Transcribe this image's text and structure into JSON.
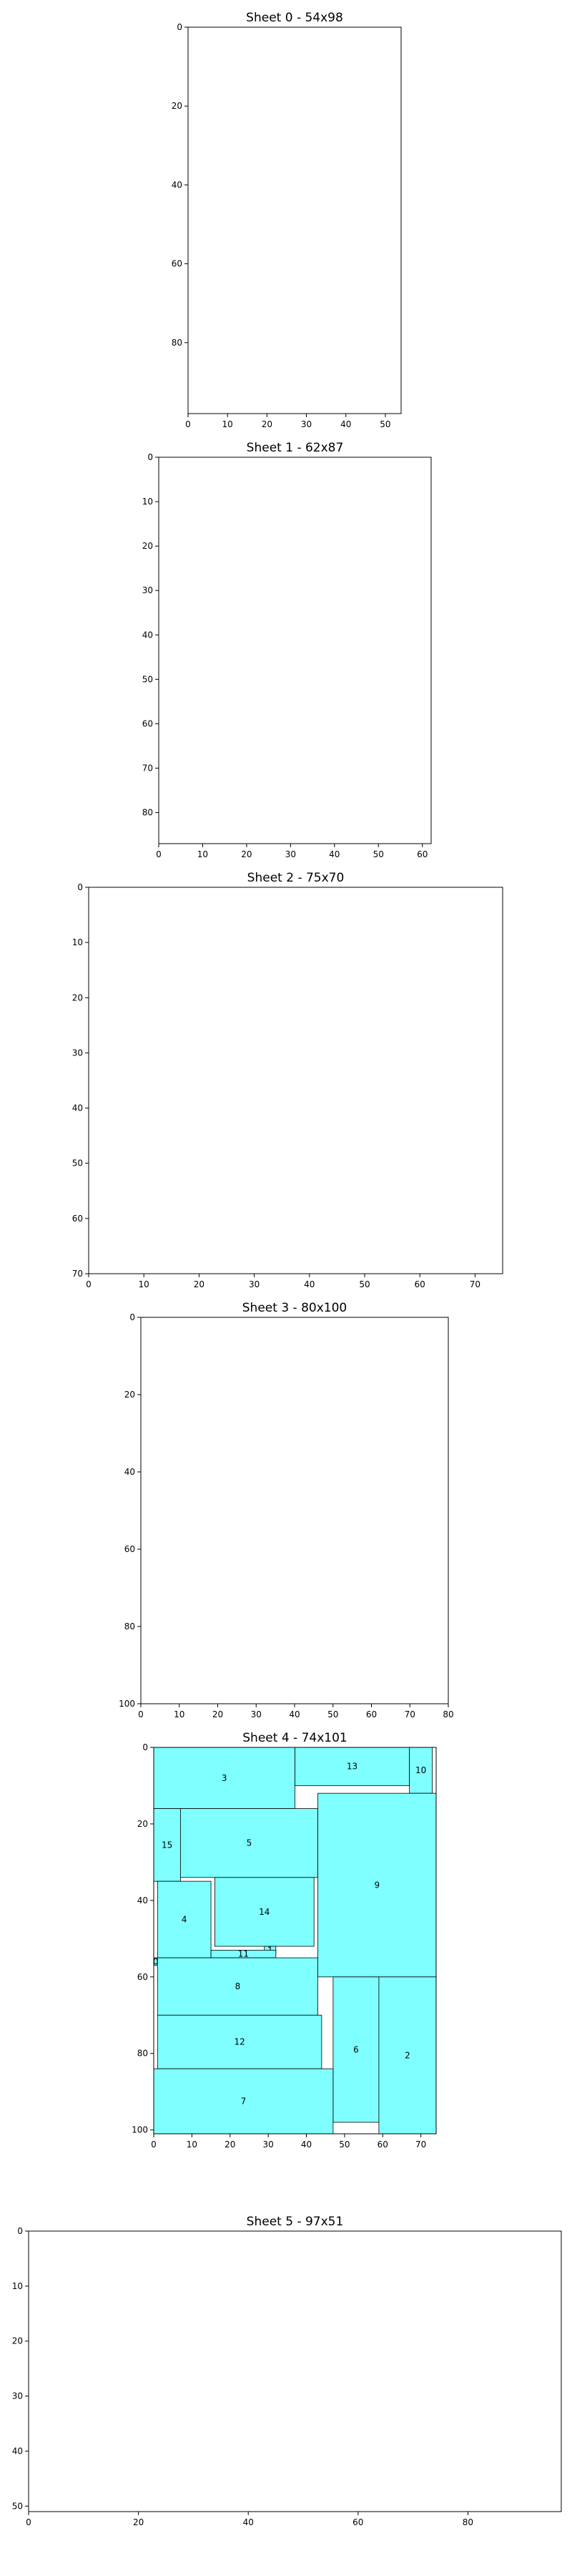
{
  "chart_data": [
    {
      "type": "packing",
      "title": "Sheet 0 - 54x98",
      "xlim": [
        0,
        54
      ],
      "ylim": [
        0,
        98
      ],
      "y_inverted": true,
      "xticks": [
        0,
        10,
        20,
        30,
        40,
        50
      ],
      "yticks": [
        0,
        20,
        40,
        60,
        80
      ],
      "pieces": []
    },
    {
      "type": "packing",
      "title": "Sheet 1 - 62x87",
      "xlim": [
        0,
        62
      ],
      "ylim": [
        0,
        87
      ],
      "y_inverted": true,
      "xticks": [
        0,
        10,
        20,
        30,
        40,
        50,
        60
      ],
      "yticks": [
        0,
        10,
        20,
        30,
        40,
        50,
        60,
        70,
        80
      ],
      "pieces": []
    },
    {
      "type": "packing",
      "title": "Sheet 2 - 75x70",
      "xlim": [
        0,
        75
      ],
      "ylim": [
        0,
        70
      ],
      "y_inverted": true,
      "xticks": [
        0,
        10,
        20,
        30,
        40,
        50,
        60,
        70
      ],
      "yticks": [
        0,
        10,
        20,
        30,
        40,
        50,
        60,
        70
      ],
      "pieces": []
    },
    {
      "type": "packing",
      "title": "Sheet 3 - 80x100",
      "xlim": [
        0,
        80
      ],
      "ylim": [
        0,
        100
      ],
      "y_inverted": true,
      "xticks": [
        0,
        10,
        20,
        30,
        40,
        50,
        60,
        70,
        80
      ],
      "yticks": [
        0,
        20,
        40,
        60,
        80,
        100
      ],
      "pieces": []
    },
    {
      "type": "packing",
      "title": "Sheet 4 - 74x101",
      "xlim": [
        0,
        74
      ],
      "ylim": [
        0,
        101
      ],
      "y_inverted": true,
      "xticks": [
        0,
        10,
        20,
        30,
        40,
        50,
        60,
        70
      ],
      "yticks": [
        0,
        20,
        40,
        60,
        80,
        100
      ],
      "piece_color": "#7fffff",
      "pieces": [
        {
          "label": "3",
          "x": 0,
          "y": 0,
          "w": 37,
          "h": 16
        },
        {
          "label": "13",
          "x": 37,
          "y": 0,
          "w": 30,
          "h": 10
        },
        {
          "label": "10",
          "x": 67,
          "y": 0,
          "w": 6,
          "h": 12
        },
        {
          "label": "15",
          "x": 0,
          "y": 16,
          "w": 7,
          "h": 19
        },
        {
          "label": "5",
          "x": 7,
          "y": 16,
          "w": 36,
          "h": 18
        },
        {
          "label": "9",
          "x": 43,
          "y": 12,
          "w": 31,
          "h": 48
        },
        {
          "label": "4",
          "x": 1,
          "y": 35,
          "w": 14,
          "h": 20
        },
        {
          "label": "14",
          "x": 16,
          "y": 34,
          "w": 26,
          "h": 18
        },
        {
          "label": "1",
          "x": 29,
          "y": 52,
          "w": 3,
          "h": 2
        },
        {
          "label": "11",
          "x": 15,
          "y": 53,
          "w": 17,
          "h": 2
        },
        {
          "label": "0",
          "x": 0,
          "y": 55,
          "w": 1,
          "h": 2
        },
        {
          "label": "8",
          "x": 1,
          "y": 55,
          "w": 42,
          "h": 15
        },
        {
          "label": "12",
          "x": 1,
          "y": 70,
          "w": 43,
          "h": 14
        },
        {
          "label": "6",
          "x": 47,
          "y": 60,
          "w": 12,
          "h": 38
        },
        {
          "label": "2",
          "x": 59,
          "y": 60,
          "w": 15,
          "h": 41
        },
        {
          "label": "7",
          "x": 0,
          "y": 84,
          "w": 47,
          "h": 17
        }
      ]
    },
    {
      "type": "packing",
      "title": "Sheet 5 - 97x51",
      "xlim": [
        0,
        97
      ],
      "ylim": [
        0,
        51
      ],
      "y_inverted": true,
      "xticks": [
        0,
        20,
        40,
        60,
        80
      ],
      "yticks": [
        0,
        10,
        20,
        30,
        40,
        50
      ],
      "pieces": []
    }
  ]
}
